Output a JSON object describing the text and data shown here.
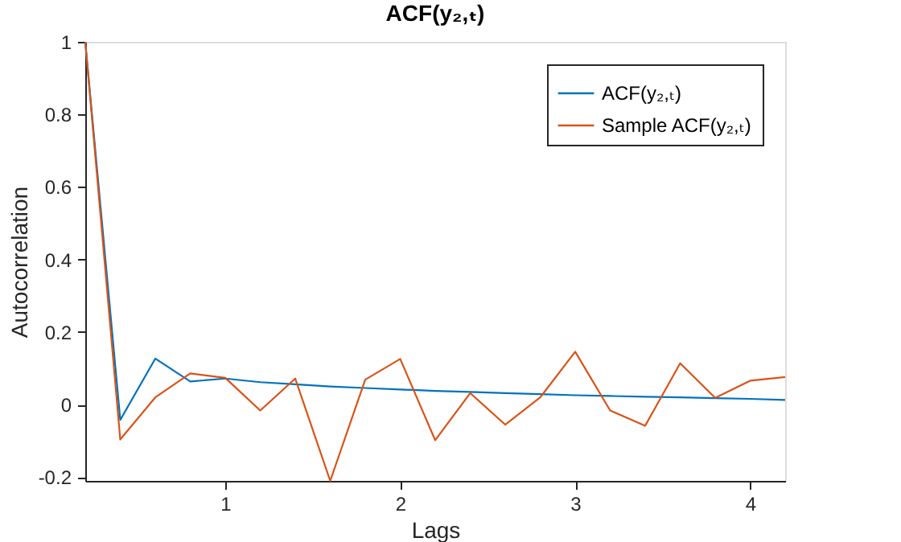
{
  "chart_data": {
    "type": "line",
    "title": "ACF(y₂,ₜ)",
    "xlabel": "Lags",
    "ylabel": "Autocorrelation",
    "x": [
      0.2,
      0.4,
      0.6,
      0.8,
      1.0,
      1.2,
      1.4,
      1.6,
      1.8,
      2.0,
      2.2,
      2.4,
      2.6,
      2.8,
      3.0,
      3.2,
      3.4,
      3.6,
      3.8,
      4.0,
      4.2
    ],
    "series": [
      {
        "name": "ACF(y₂,ₜ)",
        "color": "#0072bd",
        "values": [
          1,
          -0.042,
          0.127,
          0.064,
          0.072,
          0.062,
          0.056,
          0.05,
          0.046,
          0.042,
          0.038,
          0.035,
          0.032,
          0.029,
          0.026,
          0.024,
          0.022,
          0.02,
          0.018,
          0.016,
          0.013
        ]
      },
      {
        "name": "Sample ACF(y₂,ₜ)",
        "color": "#d95319",
        "values": [
          1,
          -0.096,
          0.02,
          0.086,
          0.074,
          -0.016,
          0.072,
          -0.21,
          0.069,
          0.126,
          -0.098,
          0.032,
          -0.055,
          0.02,
          0.146,
          -0.016,
          -0.058,
          0.114,
          0.019,
          0.066,
          0.076
        ]
      }
    ],
    "xlim": [
      0.2,
      4.2
    ],
    "xticks": [
      1,
      2,
      3,
      4
    ],
    "ylim": [
      -0.21,
      1
    ],
    "yticks": [
      -0.2,
      0,
      0.2,
      0.4,
      0.6,
      0.8,
      1
    ],
    "grid": false,
    "legend": "top right",
    "marker": "none",
    "line_style": "solid"
  }
}
